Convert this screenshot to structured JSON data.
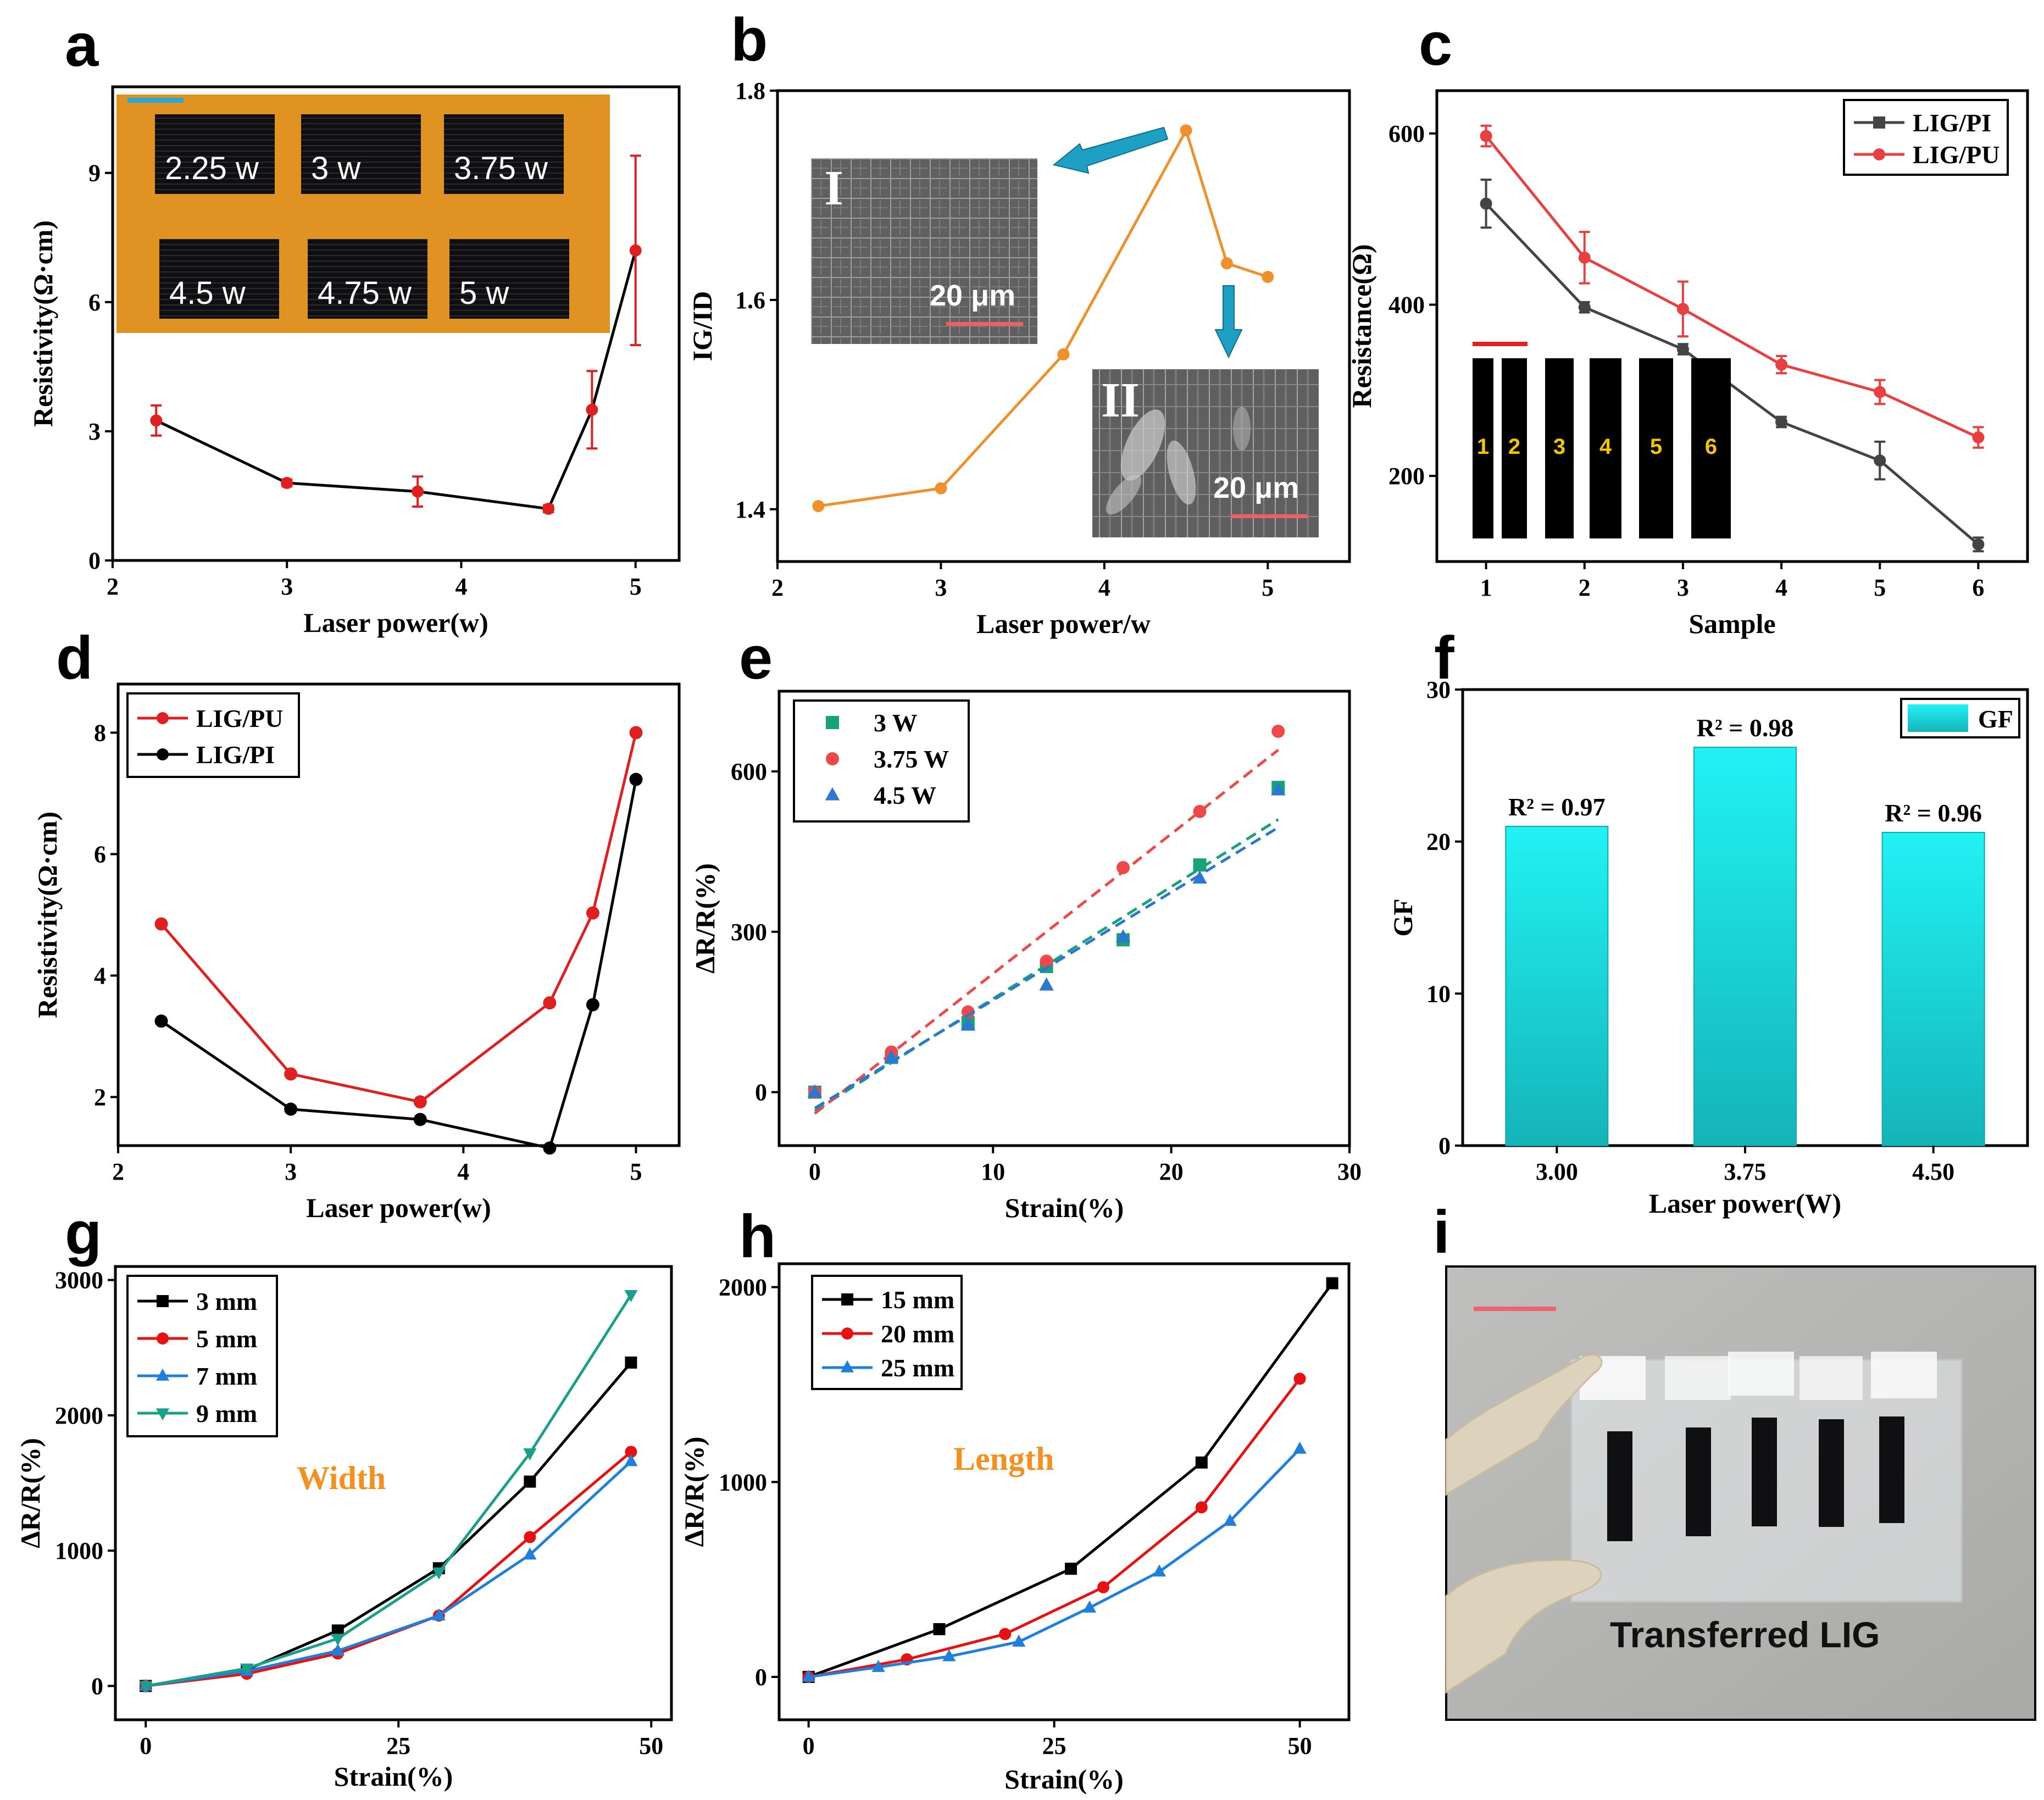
{
  "panels": {
    "a": {
      "letter": "a"
    },
    "b": {
      "letter": "b",
      "inset_I": "I",
      "inset_II": "II",
      "inset_I_scale": "20 μm",
      "inset_II_scale": "20 μm"
    },
    "c": {
      "letter": "c",
      "strip_labels": [
        "1",
        "2",
        "3",
        "4",
        "5",
        "6"
      ]
    },
    "d": {
      "letter": "d"
    },
    "e": {
      "letter": "e"
    },
    "f": {
      "letter": "f"
    },
    "g": {
      "letter": "g",
      "annotation": "Width"
    },
    "h": {
      "letter": "h",
      "annotation": "Length"
    },
    "i": {
      "letter": "i",
      "caption": "Transferred LIG"
    }
  },
  "chart_data": [
    {
      "id": "a",
      "type": "line",
      "xlabel": "Laser power(w)",
      "ylabel": "Resistivity(Ω·cm)",
      "xlim": [
        2,
        5.25
      ],
      "ylim": [
        0,
        11
      ],
      "xticks": [
        2,
        3,
        4,
        5
      ],
      "yticks": [
        0,
        3,
        6,
        9
      ],
      "inset_photo_labels": [
        "2.25 w",
        "3 w",
        "3.75 w",
        "4.5 w",
        "4.75 w",
        "5 w"
      ],
      "series": [
        {
          "name": "Resistivity",
          "color": "#e02020",
          "line": "#000000",
          "x": [
            2.25,
            3,
            3.75,
            4.5,
            4.75,
            5
          ],
          "y": [
            3.25,
            1.8,
            1.6,
            1.2,
            3.5,
            7.2
          ],
          "err": [
            0.35,
            0.08,
            0.35,
            0.08,
            0.9,
            2.2
          ]
        }
      ]
    },
    {
      "id": "b",
      "type": "line",
      "xlabel": "Laser power/w",
      "ylabel": "IG/ID",
      "xlim": [
        2,
        5.5
      ],
      "ylim": [
        1.35,
        1.8
      ],
      "xticks": [
        2,
        3,
        4,
        5
      ],
      "yticks": [
        1.4,
        1.6,
        1.8
      ],
      "series": [
        {
          "name": "IG/ID",
          "color": "#f0902a",
          "x": [
            2.25,
            3,
            3.75,
            4.5,
            4.75,
            5
          ],
          "y": [
            1.403,
            1.42,
            1.548,
            1.762,
            1.635,
            1.622
          ]
        }
      ]
    },
    {
      "id": "c",
      "type": "line",
      "xlabel": "Sample",
      "ylabel": "Resistance(Ω)",
      "xlim": [
        0.5,
        6.5
      ],
      "ylim": [
        100,
        650
      ],
      "xticks": [
        1,
        2,
        3,
        4,
        5,
        6
      ],
      "yticks": [
        200,
        400,
        600
      ],
      "series": [
        {
          "name": "LIG/PI",
          "color": "#444444",
          "x": [
            1,
            2,
            3,
            4,
            5,
            6
          ],
          "y": [
            518,
            397,
            348,
            263,
            218,
            120
          ],
          "err": [
            28,
            6,
            6,
            6,
            22,
            8
          ]
        },
        {
          "name": "LIG/PU",
          "color": "#e84040",
          "x": [
            1,
            2,
            3,
            4,
            5,
            6
          ],
          "y": [
            597,
            455,
            395,
            330,
            298,
            245
          ],
          "err": [
            12,
            30,
            32,
            10,
            14,
            12
          ]
        }
      ]
    },
    {
      "id": "d",
      "type": "line",
      "xlabel": "Laser power(w)",
      "ylabel": "Resistivity(Ω·cm)",
      "xlim": [
        2,
        5.25
      ],
      "ylim": [
        1.2,
        8.8
      ],
      "xticks": [
        2,
        3,
        4,
        5
      ],
      "yticks": [
        2,
        4,
        6,
        8
      ],
      "series": [
        {
          "name": "LIG/PU",
          "color": "#e02020",
          "x": [
            2.25,
            3,
            3.75,
            4.5,
            4.75,
            5
          ],
          "y": [
            4.85,
            2.38,
            1.92,
            3.55,
            5.03,
            8.0
          ]
        },
        {
          "name": "LIG/PI",
          "color": "#000000",
          "x": [
            2.25,
            3,
            3.75,
            4.5,
            4.75,
            5
          ],
          "y": [
            3.25,
            1.8,
            1.63,
            1.16,
            3.52,
            7.23
          ]
        }
      ]
    },
    {
      "id": "e",
      "type": "scatter",
      "xlabel": "Strain(%)",
      "ylabel": "ΔR/R(%)",
      "xlim": [
        -2,
        30
      ],
      "ylim": [
        -100,
        750
      ],
      "xticks": [
        0,
        10,
        20,
        30
      ],
      "yticks": [
        0,
        300,
        600
      ],
      "series": [
        {
          "name": "3 W",
          "color": "#17a27a",
          "marker": "square",
          "x": [
            0,
            4.3,
            8.6,
            13,
            17.3,
            21.6,
            26
          ],
          "y": [
            0,
            65,
            130,
            235,
            285,
            425,
            570
          ],
          "fit": [
            -35,
            510
          ]
        },
        {
          "name": "3.75 W",
          "color": "#f04848",
          "marker": "circle",
          "x": [
            0,
            4.3,
            8.6,
            13,
            17.3,
            21.6,
            26
          ],
          "y": [
            0,
            75,
            150,
            245,
            420,
            525,
            675
          ],
          "fit": [
            -40,
            640
          ]
        },
        {
          "name": "4.5 W",
          "color": "#2a78d0",
          "marker": "triangle",
          "x": [
            0,
            4.3,
            8.6,
            13,
            17.3,
            21.6,
            26
          ],
          "y": [
            0,
            65,
            125,
            200,
            290,
            400,
            565
          ],
          "fit": [
            -30,
            495
          ]
        }
      ]
    },
    {
      "id": "f",
      "type": "bar",
      "xlabel": "Laser power(W)",
      "ylabel": "GF",
      "ylim": [
        0,
        30
      ],
      "yticks": [
        0,
        10,
        20,
        30
      ],
      "categories": [
        "3.00",
        "3.75",
        "4.50"
      ],
      "values": [
        21,
        26.2,
        20.6
      ],
      "bar_labels": [
        "R² = 0.97",
        "R² = 0.98",
        "R² = 0.96"
      ],
      "legend": "GF",
      "color": "#19d8da"
    },
    {
      "id": "g",
      "type": "line",
      "xlabel": "Strain(%)",
      "ylabel": "ΔR/R(%)",
      "xlim": [
        -3,
        52
      ],
      "ylim": [
        -250,
        3100
      ],
      "xticks": [
        0,
        25,
        50
      ],
      "yticks": [
        0,
        1000,
        2000,
        3000
      ],
      "series": [
        {
          "name": "3 mm",
          "color": "#000000",
          "marker": "square",
          "x": [
            0,
            10,
            19,
            29,
            38,
            48
          ],
          "y": [
            0,
            120,
            410,
            870,
            1510,
            2390
          ]
        },
        {
          "name": "5 mm",
          "color": "#e81010",
          "marker": "circle",
          "x": [
            0,
            10,
            19,
            29,
            38,
            48
          ],
          "y": [
            0,
            90,
            240,
            520,
            1100,
            1730
          ]
        },
        {
          "name": "7 mm",
          "color": "#1f7fdc",
          "marker": "triangle",
          "x": [
            0,
            10,
            19,
            29,
            38,
            48
          ],
          "y": [
            0,
            110,
            260,
            520,
            970,
            1660
          ]
        },
        {
          "name": "9 mm",
          "color": "#1aa08a",
          "marker": "triangle-down",
          "x": [
            0,
            10,
            19,
            29,
            38,
            48
          ],
          "y": [
            0,
            130,
            350,
            840,
            1720,
            2890
          ]
        }
      ]
    },
    {
      "id": "h",
      "type": "line",
      "xlabel": "Strain(%)",
      "ylabel": "ΔR/R(%)",
      "xlim": [
        -3,
        55
      ],
      "ylim": [
        -220,
        2120
      ],
      "xticks": [
        0,
        25,
        50
      ],
      "yticks": [
        0,
        1000,
        2000
      ],
      "series": [
        {
          "name": "15 mm",
          "color": "#000000",
          "marker": "square",
          "x": [
            0,
            13.3,
            26.7,
            40,
            53.3
          ],
          "y": [
            0,
            245,
            555,
            1100,
            2020
          ]
        },
        {
          "name": "20 mm",
          "color": "#e81010",
          "marker": "circle",
          "x": [
            0,
            10,
            20,
            30,
            40,
            50
          ],
          "y": [
            0,
            90,
            220,
            460,
            870,
            1530
          ]
        },
        {
          "name": "25 mm",
          "color": "#1f7fdc",
          "marker": "triangle",
          "x": [
            0,
            7.1,
            14.3,
            21.4,
            28.6,
            35.7,
            42.9,
            50
          ],
          "y": [
            0,
            50,
            105,
            180,
            355,
            540,
            800,
            1170
          ]
        }
      ]
    }
  ]
}
